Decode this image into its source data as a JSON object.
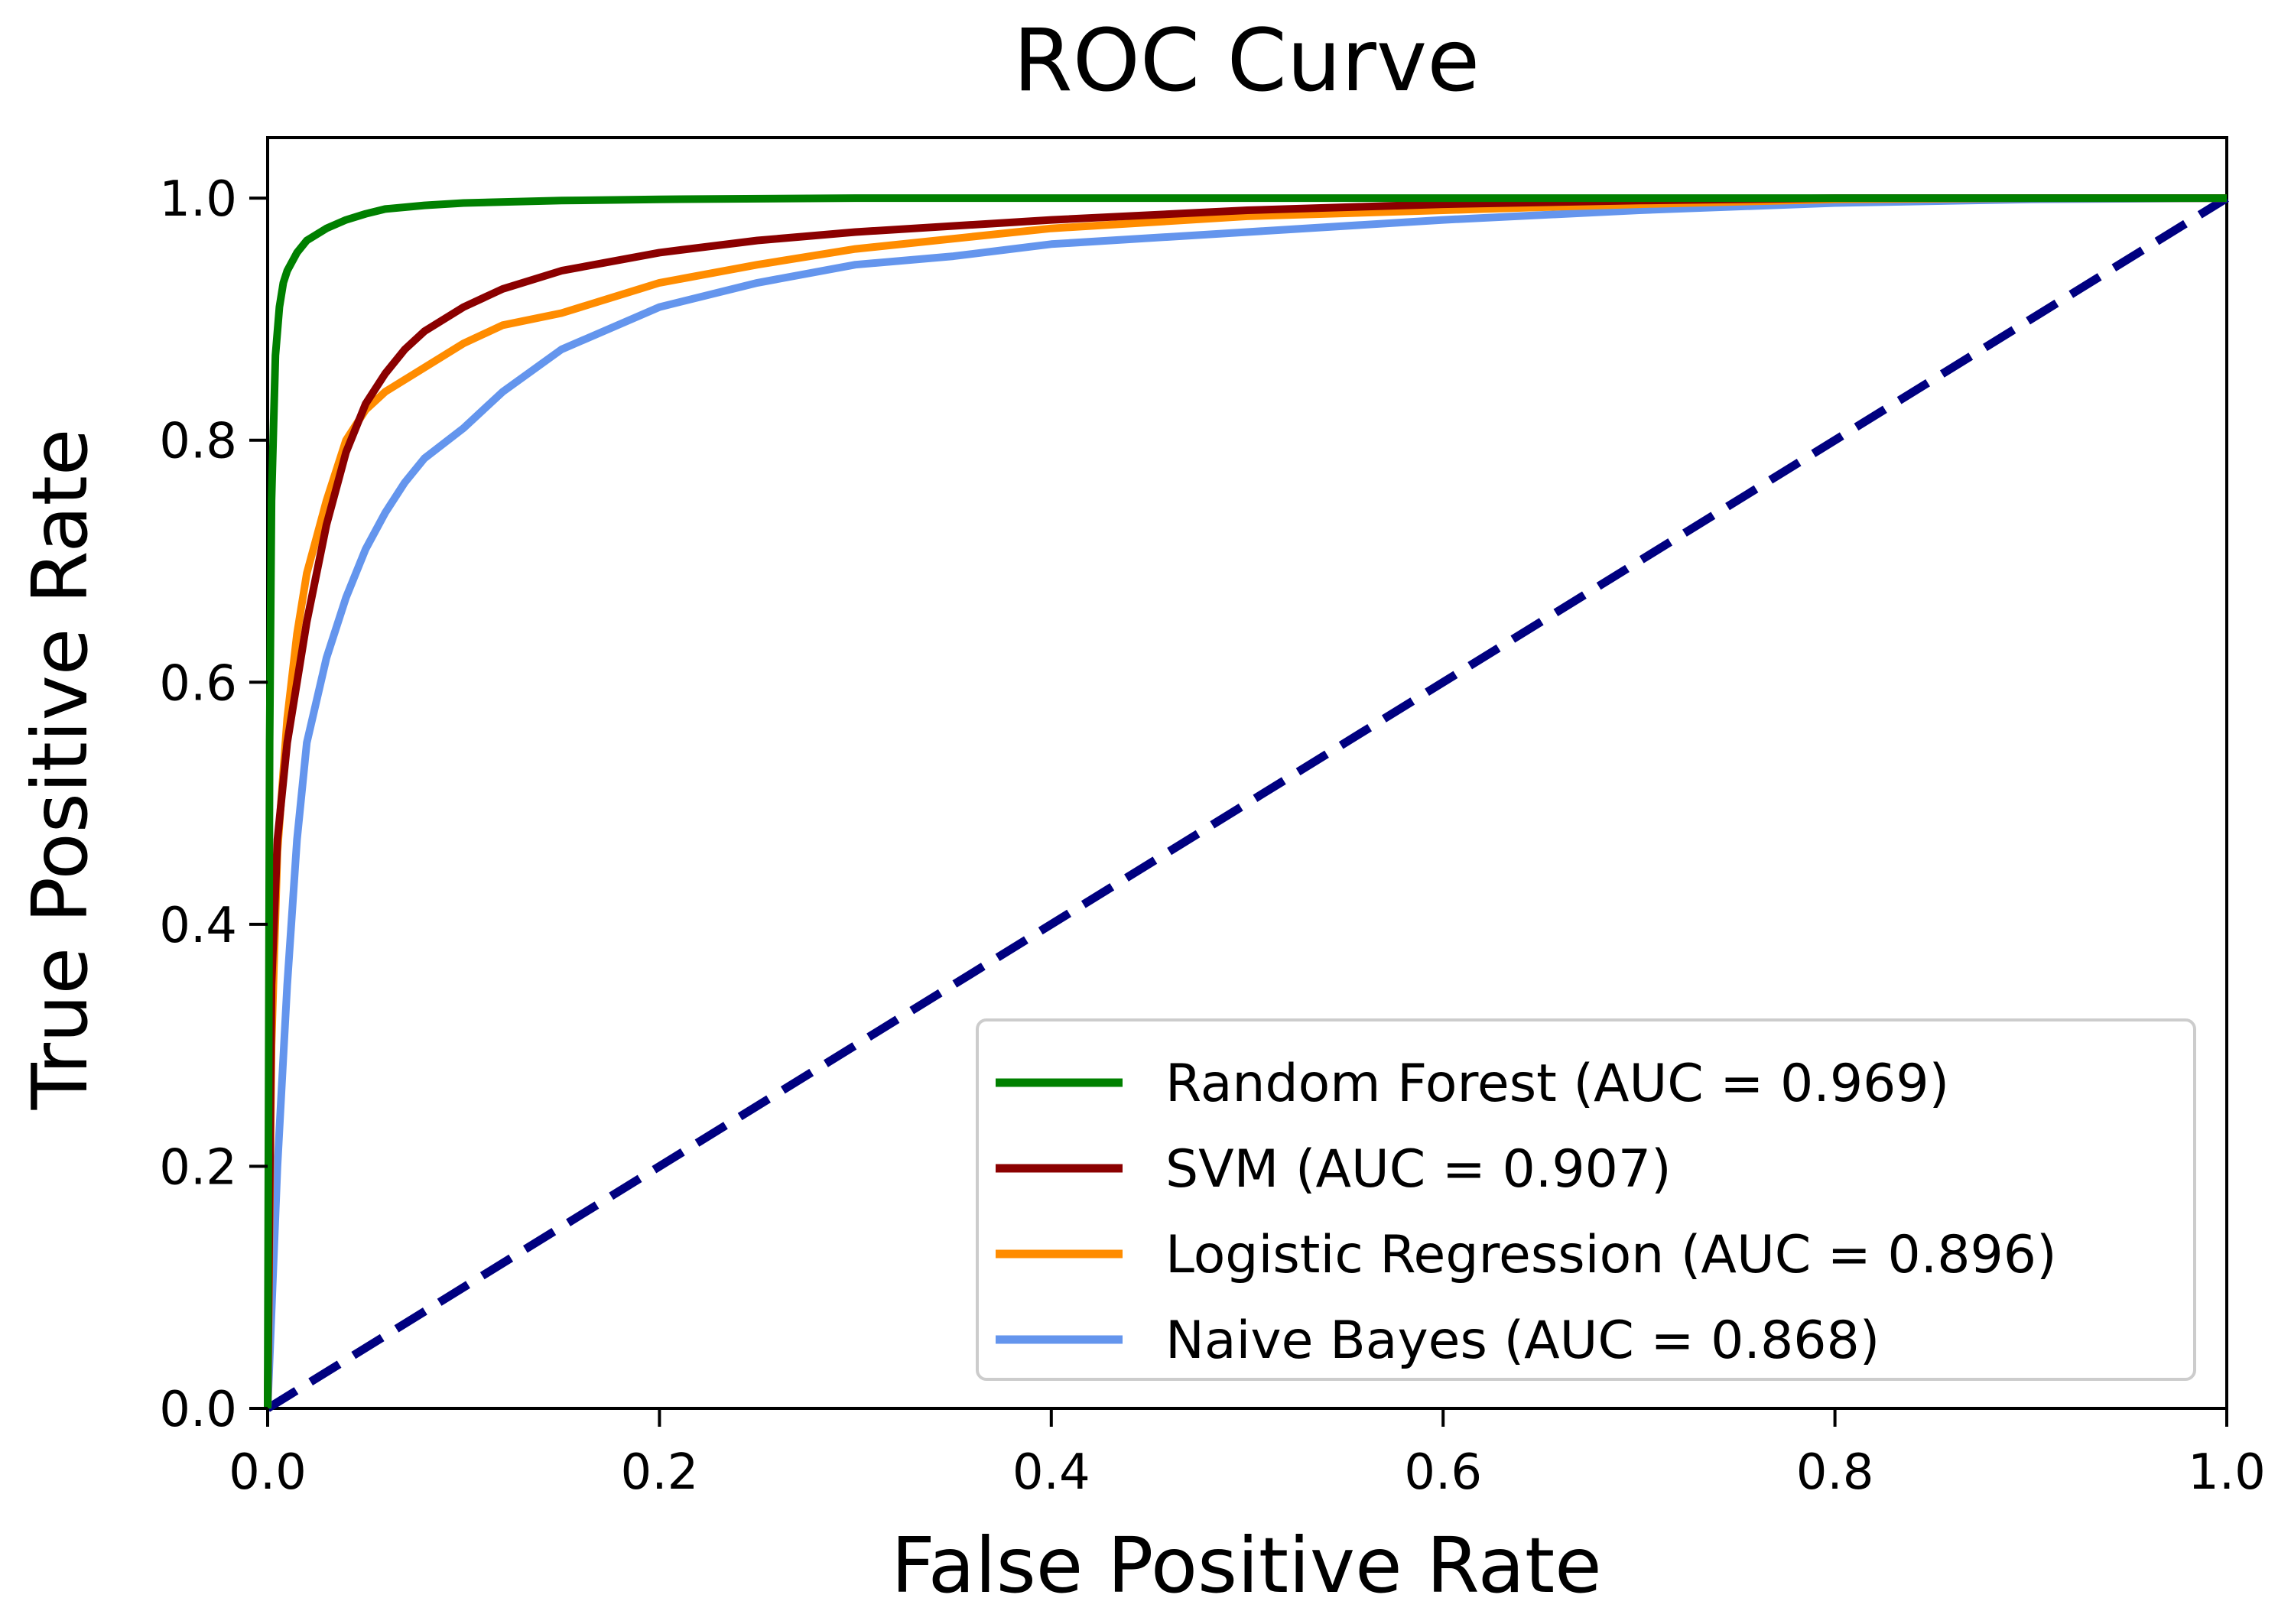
{
  "chart_data": {
    "type": "line",
    "title": "ROC Curve",
    "xlabel": "False Positive Rate",
    "ylabel": "True Positive Rate",
    "xlim": [
      0.0,
      1.0
    ],
    "ylim": [
      0.0,
      1.05
    ],
    "grid": false,
    "legend_position": "bottom-right",
    "x_ticks": [
      {
        "value": 0.0,
        "label": "0.0"
      },
      {
        "value": 0.2,
        "label": "0.2"
      },
      {
        "value": 0.4,
        "label": "0.4"
      },
      {
        "value": 0.6,
        "label": "0.6"
      },
      {
        "value": 0.8,
        "label": "0.8"
      },
      {
        "value": 1.0,
        "label": "1.0"
      }
    ],
    "y_ticks": [
      {
        "value": 0.0,
        "label": "0.0"
      },
      {
        "value": 0.2,
        "label": "0.2"
      },
      {
        "value": 0.4,
        "label": "0.4"
      },
      {
        "value": 0.6,
        "label": "0.6"
      },
      {
        "value": 0.8,
        "label": "0.8"
      },
      {
        "value": 1.0,
        "label": "1.0"
      }
    ],
    "series": [
      {
        "key": "random-forest",
        "name": "Random Forest (AUC = 0.969)",
        "color": "#008000",
        "line_style": "solid",
        "x": [
          0.0,
          0.001,
          0.002,
          0.004,
          0.006,
          0.008,
          0.01,
          0.015,
          0.02,
          0.03,
          0.04,
          0.05,
          0.06,
          0.08,
          0.1,
          0.15,
          0.2,
          0.3,
          0.4,
          0.6,
          0.8,
          1.0
        ],
        "y": [
          0.0,
          0.55,
          0.75,
          0.87,
          0.91,
          0.93,
          0.94,
          0.955,
          0.965,
          0.975,
          0.982,
          0.987,
          0.991,
          0.994,
          0.996,
          0.998,
          0.999,
          1.0,
          1.0,
          1.0,
          1.0,
          1.0
        ]
      },
      {
        "key": "svm",
        "name": "SVM (AUC = 0.907)",
        "color": "#8b0000",
        "line_style": "solid",
        "x": [
          0.0,
          0.002,
          0.005,
          0.01,
          0.015,
          0.02,
          0.03,
          0.04,
          0.05,
          0.06,
          0.07,
          0.08,
          0.1,
          0.12,
          0.15,
          0.2,
          0.25,
          0.3,
          0.4,
          0.5,
          0.6,
          0.7,
          0.8,
          0.9,
          1.0
        ],
        "y": [
          0.0,
          0.35,
          0.47,
          0.55,
          0.6,
          0.65,
          0.73,
          0.79,
          0.83,
          0.855,
          0.875,
          0.89,
          0.91,
          0.925,
          0.94,
          0.955,
          0.965,
          0.972,
          0.982,
          0.99,
          0.995,
          0.998,
          1.0,
          1.0,
          1.0
        ]
      },
      {
        "key": "logistic-regression",
        "name": "Logistic Regression (AUC = 0.896)",
        "color": "#ff8c00",
        "line_style": "solid",
        "x": [
          0.0,
          0.002,
          0.005,
          0.01,
          0.015,
          0.02,
          0.025,
          0.03,
          0.04,
          0.05,
          0.06,
          0.08,
          0.1,
          0.12,
          0.15,
          0.2,
          0.25,
          0.3,
          0.4,
          0.5,
          0.6,
          0.7,
          0.8,
          0.9,
          1.0
        ],
        "y": [
          0.0,
          0.3,
          0.46,
          0.57,
          0.64,
          0.69,
          0.72,
          0.75,
          0.8,
          0.825,
          0.84,
          0.86,
          0.88,
          0.895,
          0.905,
          0.93,
          0.945,
          0.958,
          0.975,
          0.985,
          0.99,
          0.995,
          0.999,
          1.0,
          1.0
        ]
      },
      {
        "key": "naive-bayes",
        "name": "Naive Bayes (AUC = 0.868)",
        "color": "#6495ed",
        "line_style": "solid",
        "x": [
          0.0,
          0.005,
          0.01,
          0.015,
          0.02,
          0.03,
          0.04,
          0.05,
          0.06,
          0.07,
          0.08,
          0.1,
          0.12,
          0.15,
          0.2,
          0.25,
          0.3,
          0.35,
          0.4,
          0.5,
          0.6,
          0.7,
          0.8,
          0.9,
          1.0
        ],
        "y": [
          0.0,
          0.2,
          0.35,
          0.47,
          0.55,
          0.62,
          0.67,
          0.71,
          0.74,
          0.765,
          0.785,
          0.81,
          0.84,
          0.875,
          0.91,
          0.93,
          0.945,
          0.952,
          0.962,
          0.972,
          0.982,
          0.99,
          0.996,
          0.999,
          1.0
        ]
      }
    ],
    "reference_line": {
      "name": "random-chance",
      "color": "#000080",
      "line_style": "dashed",
      "x": [
        0.0,
        1.0
      ],
      "y": [
        0.0,
        1.0
      ]
    }
  }
}
